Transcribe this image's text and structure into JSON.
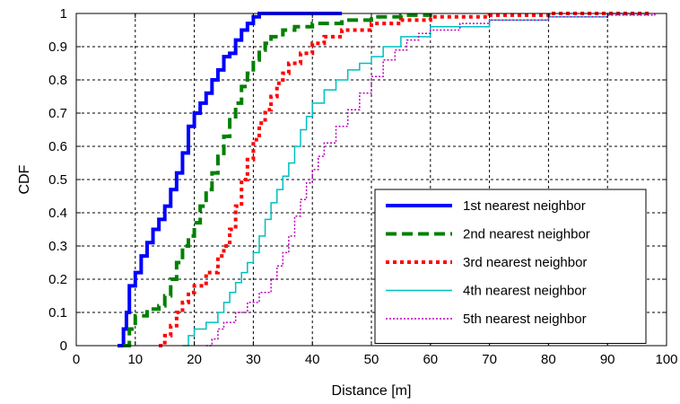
{
  "chart_data": {
    "type": "line",
    "xlabel": "Distance [m]",
    "ylabel": "CDF",
    "xlim": [
      0,
      100
    ],
    "ylim": [
      0,
      1
    ],
    "xticks": [
      0,
      10,
      20,
      30,
      40,
      50,
      60,
      70,
      80,
      90,
      100
    ],
    "yticks": [
      0,
      0.1,
      0.2,
      0.3,
      0.4,
      0.5,
      0.6,
      0.7,
      0.8,
      0.9,
      1
    ],
    "xtick_labels": [
      "0",
      "10",
      "20",
      "30",
      "40",
      "50",
      "60",
      "70",
      "80",
      "90",
      "100"
    ],
    "ytick_labels": [
      "0",
      "0.1",
      "0.2",
      "0.3",
      "0.4",
      "0.5",
      "0.6",
      "0.7",
      "0.8",
      "0.9",
      "1"
    ],
    "grid": true,
    "legend_position": "bottom-right",
    "series": [
      {
        "name": "1st nearest neighbor",
        "color": "#0000ff",
        "style": "solid-thick",
        "x": [
          7,
          8,
          8.5,
          9,
          10,
          11,
          12,
          13,
          14,
          15,
          16,
          17,
          18,
          19,
          20,
          21,
          22,
          23,
          24,
          25,
          26,
          27,
          28,
          29,
          30,
          31,
          32,
          35,
          40,
          45
        ],
        "y": [
          0,
          0.05,
          0.1,
          0.18,
          0.22,
          0.27,
          0.31,
          0.35,
          0.38,
          0.42,
          0.47,
          0.52,
          0.58,
          0.66,
          0.7,
          0.73,
          0.76,
          0.8,
          0.83,
          0.87,
          0.88,
          0.92,
          0.95,
          0.97,
          0.99,
          1,
          1,
          1,
          1,
          1
        ]
      },
      {
        "name": "2nd nearest neighbor",
        "color": "#008000",
        "style": "dashed-thick",
        "x": [
          8,
          9,
          10,
          12,
          14,
          15,
          16,
          17,
          18,
          19,
          20,
          21,
          22,
          23,
          24,
          25,
          26,
          27,
          28,
          29,
          30,
          31,
          32,
          33,
          35,
          37,
          40,
          45,
          50,
          55,
          60
        ],
        "y": [
          0,
          0.05,
          0.09,
          0.11,
          0.12,
          0.15,
          0.2,
          0.25,
          0.3,
          0.33,
          0.37,
          0.42,
          0.47,
          0.52,
          0.57,
          0.63,
          0.68,
          0.73,
          0.78,
          0.82,
          0.86,
          0.89,
          0.91,
          0.93,
          0.95,
          0.96,
          0.97,
          0.98,
          0.99,
          0.995,
          1
        ]
      },
      {
        "name": "3rd nearest neighbor",
        "color": "#ff0000",
        "style": "dotted-thick",
        "x": [
          14,
          15,
          16,
          17,
          18,
          19,
          20,
          22,
          24,
          25,
          26,
          27,
          28,
          29,
          30,
          31,
          32,
          33,
          34,
          35,
          36,
          38,
          40,
          42,
          45,
          50,
          55,
          60,
          70,
          80,
          90,
          97
        ],
        "y": [
          0,
          0.03,
          0.06,
          0.1,
          0.13,
          0.16,
          0.18,
          0.22,
          0.27,
          0.3,
          0.35,
          0.42,
          0.5,
          0.56,
          0.62,
          0.67,
          0.71,
          0.75,
          0.79,
          0.82,
          0.85,
          0.88,
          0.91,
          0.93,
          0.95,
          0.97,
          0.98,
          0.99,
          0.995,
          1,
          1,
          1
        ]
      },
      {
        "name": "4th nearest neighbor",
        "color": "#00bfbf",
        "style": "solid-thin",
        "x": [
          18,
          19,
          20,
          22,
          24,
          25,
          26,
          27,
          28,
          29,
          30,
          31,
          32,
          33,
          34,
          35,
          36,
          37,
          38,
          39,
          40,
          42,
          44,
          46,
          48,
          50,
          52,
          55,
          60,
          70,
          80,
          90,
          97
        ],
        "y": [
          0,
          0.03,
          0.05,
          0.07,
          0.1,
          0.13,
          0.16,
          0.19,
          0.22,
          0.25,
          0.28,
          0.33,
          0.38,
          0.43,
          0.47,
          0.51,
          0.55,
          0.6,
          0.65,
          0.69,
          0.73,
          0.77,
          0.8,
          0.83,
          0.85,
          0.87,
          0.9,
          0.93,
          0.96,
          0.98,
          0.99,
          1,
          1
        ]
      },
      {
        "name": "5th nearest neighbor",
        "color": "#bf00bf",
        "style": "dotted-thin",
        "x": [
          22,
          23,
          24,
          25,
          27,
          29,
          31,
          33,
          34,
          35,
          36,
          37,
          38,
          39,
          40,
          41,
          42,
          44,
          46,
          48,
          50,
          52,
          54,
          56,
          58,
          60,
          65,
          70,
          80,
          90,
          98
        ],
        "y": [
          0,
          0.02,
          0.05,
          0.07,
          0.1,
          0.13,
          0.16,
          0.2,
          0.24,
          0.28,
          0.33,
          0.39,
          0.44,
          0.49,
          0.53,
          0.57,
          0.61,
          0.66,
          0.71,
          0.76,
          0.81,
          0.86,
          0.89,
          0.92,
          0.94,
          0.95,
          0.97,
          0.98,
          0.99,
          0.995,
          1
        ]
      }
    ]
  }
}
